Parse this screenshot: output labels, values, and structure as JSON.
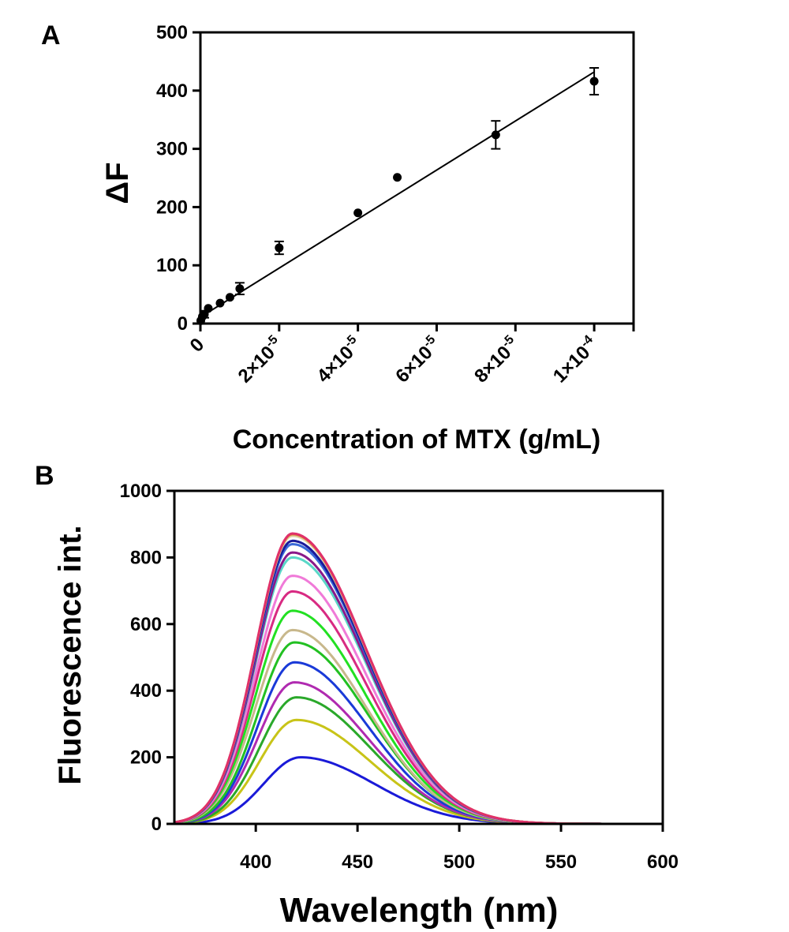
{
  "chart_data": [
    {
      "panel": "A",
      "type": "scatter",
      "xlabel": "Concentration of MTX (g/mL)",
      "ylabel": "ΔF",
      "xlim": [
        0,
        0.00011
      ],
      "ylim": [
        0,
        500
      ],
      "x_ticks": [
        {
          "value": 0,
          "label": "0",
          "mantissa": "",
          "exponent": ""
        },
        {
          "value": 2e-05,
          "label": "2×10-5",
          "mantissa": "2×10",
          "exponent": "-5"
        },
        {
          "value": 4e-05,
          "label": "4×10-5",
          "mantissa": "4×10",
          "exponent": "-5"
        },
        {
          "value": 6e-05,
          "label": "6×10-5",
          "mantissa": "6×10",
          "exponent": "-5"
        },
        {
          "value": 8e-05,
          "label": "8×10-5",
          "mantissa": "8×10",
          "exponent": "-5"
        },
        {
          "value": 0.0001,
          "label": "1×10-4",
          "mantissa": "1×10",
          "exponent": "-4"
        }
      ],
      "y_ticks": [
        0,
        100,
        200,
        300,
        400,
        500
      ],
      "series": [
        {
          "points": [
            {
              "x": 1e-07,
              "y": 5,
              "err": 0
            },
            {
              "x": 5e-07,
              "y": 12,
              "err": 0
            },
            {
              "x": 1e-06,
              "y": 16,
              "err": 6
            },
            {
              "x": 2e-06,
              "y": 26,
              "err": 0
            },
            {
              "x": 5e-06,
              "y": 35,
              "err": 0
            },
            {
              "x": 7.5e-06,
              "y": 45,
              "err": 0
            },
            {
              "x": 1e-05,
              "y": 60,
              "err": 10
            },
            {
              "x": 2e-05,
              "y": 130,
              "err": 11
            },
            {
              "x": 4e-05,
              "y": 190,
              "err": 0
            },
            {
              "x": 5e-05,
              "y": 251,
              "err": 0
            },
            {
              "x": 7.5e-05,
              "y": 324,
              "err": 24
            },
            {
              "x": 0.0001,
              "y": 416,
              "err": 23
            }
          ],
          "fit_line": [
            [
              0,
              11
            ],
            [
              0.0001,
              432
            ]
          ]
        }
      ],
      "grid": false
    },
    {
      "panel": "B",
      "type": "line",
      "xlabel": "Wavelength (nm)",
      "ylabel": "Fluorescence int.",
      "xlim": [
        360,
        600
      ],
      "ylim": [
        0,
        1000
      ],
      "x_ticks": [
        400,
        450,
        500,
        550,
        600
      ],
      "y_ticks": [
        0,
        200,
        400,
        600,
        800,
        1000
      ],
      "series": [
        {
          "peak_nm": 422,
          "peak": 200,
          "color": "#1a1ad8"
        },
        {
          "peak_nm": 420,
          "peak": 312,
          "color": "#c8c418"
        },
        {
          "peak_nm": 420,
          "peak": 380,
          "color": "#2aa82a"
        },
        {
          "peak_nm": 419,
          "peak": 425,
          "color": "#b02ab0"
        },
        {
          "peak_nm": 419,
          "peak": 485,
          "color": "#1a3ad8"
        },
        {
          "peak_nm": 419,
          "peak": 545,
          "color": "#22c022"
        },
        {
          "peak_nm": 418,
          "peak": 582,
          "color": "#c8b88c"
        },
        {
          "peak_nm": 418,
          "peak": 640,
          "color": "#22e022"
        },
        {
          "peak_nm": 418,
          "peak": 698,
          "color": "#d82a82"
        },
        {
          "peak_nm": 418,
          "peak": 745,
          "color": "#f07ad8"
        },
        {
          "peak_nm": 418,
          "peak": 800,
          "color": "#5ad8c8"
        },
        {
          "peak_nm": 418,
          "peak": 815,
          "color": "#8a1a8a"
        },
        {
          "peak_nm": 418,
          "peak": 840,
          "color": "#3a6ad8"
        },
        {
          "peak_nm": 418,
          "peak": 850,
          "color": "#1a1a9a"
        },
        {
          "peak_nm": 418,
          "peak": 865,
          "color": "#e0d0a0"
        },
        {
          "peak_nm": 418,
          "peak": 870,
          "color": "#d87a2a"
        },
        {
          "peak_nm": 418,
          "peak": 872,
          "color": "#e0306a"
        }
      ],
      "grid": false
    }
  ]
}
